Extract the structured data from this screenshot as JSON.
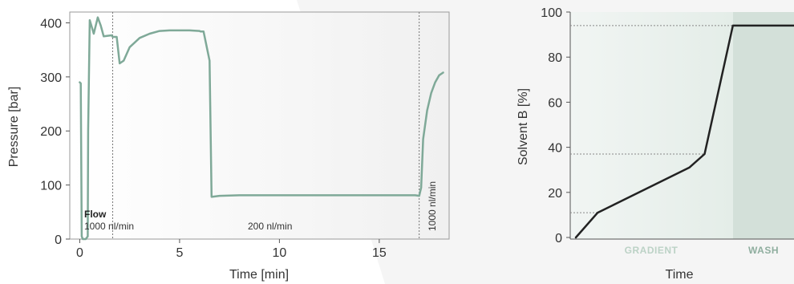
{
  "chart_data": [
    {
      "type": "line",
      "xlabel": "Time [min]",
      "ylabel": "Pressure [bar]",
      "xlim": [
        -0.5,
        18.5
      ],
      "ylim": [
        0,
        420
      ],
      "xticks": [
        0,
        5,
        10,
        15
      ],
      "yticks": [
        0,
        100,
        200,
        300,
        400
      ],
      "line_color": "#7fa998",
      "series": [
        {
          "x": [
            0,
            0.05,
            0.1,
            0.15,
            0.3,
            0.4,
            0.42,
            0.5,
            0.7,
            0.9,
            1.05,
            1.2,
            1.4,
            1.6,
            1.65,
            1.85,
            2.0,
            2.2,
            2.5,
            3.0,
            3.5,
            4.0,
            4.5,
            5.0,
            5.5,
            6.0,
            6.05,
            6.2,
            6.5,
            6.6,
            7.0,
            8.0,
            10.0,
            12.0,
            14.0,
            16.0,
            16.8,
            17.0,
            17.1,
            17.2,
            17.4,
            17.6,
            17.8,
            18.0,
            18.2
          ],
          "y": [
            290,
            288,
            5,
            0,
            0,
            5,
            200,
            405,
            380,
            410,
            395,
            375,
            376,
            377,
            374,
            374,
            325,
            330,
            355,
            372,
            380,
            385,
            386,
            386,
            386,
            385,
            384,
            384,
            330,
            78,
            80,
            81,
            81,
            81,
            81,
            81,
            81,
            80,
            95,
            185,
            238,
            270,
            290,
            303,
            308
          ]
        }
      ],
      "vlines": [
        1.65,
        17.0
      ],
      "annotations": {
        "flow_title": "Flow",
        "flow_first": "1000 nl/min",
        "flow_middle": "200 nl/min",
        "flow_last": "1000 nl/min"
      }
    },
    {
      "type": "line",
      "xlabel": "Time",
      "ylabel": "Solvent B [%]",
      "ylim": [
        0,
        100
      ],
      "yticks": [
        0,
        20,
        40,
        60,
        80,
        100
      ],
      "line_color": "#222222",
      "series": [
        {
          "x": [
            0,
            10,
            52,
            59,
            72
          ],
          "y": [
            0,
            11,
            31,
            37,
            94
          ]
        }
      ],
      "reference_levels": [
        94,
        37,
        11
      ],
      "regions": [
        {
          "label": "GRADIENT",
          "color": "#bcd2c6"
        },
        {
          "label": "WASH",
          "color": "#8fae9f"
        }
      ]
    }
  ]
}
